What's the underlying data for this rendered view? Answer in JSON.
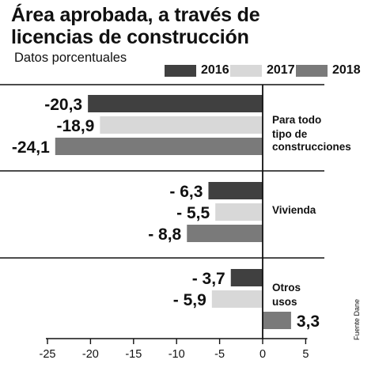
{
  "title_line1": "Área aprobada, a través de",
  "title_line2": "licencias de construcción",
  "subtitle": "Datos porcentuales",
  "source": "Fuente Dane",
  "colors": {
    "2016": "#404040",
    "2017": "#d8d8d8",
    "2018": "#7a7a7a"
  },
  "chart_data": {
    "type": "bar",
    "orientation": "horizontal",
    "categories": [
      "Para todo tipo de construcciones",
      "Vivienda",
      "Otros usos"
    ],
    "category_label_lines": [
      [
        "Para todo",
        "tipo de",
        "construcciones"
      ],
      [
        "Vivienda"
      ],
      [
        "Otros",
        "usos"
      ]
    ],
    "series": [
      {
        "name": "2016",
        "values": [
          -20.3,
          -6.3,
          -3.7
        ],
        "labels": [
          "-20,3",
          "- 6,3",
          "- 3,7"
        ]
      },
      {
        "name": "2017",
        "values": [
          -18.9,
          -5.5,
          -5.9
        ],
        "labels": [
          "-18,9",
          "- 5,5",
          "- 5,9"
        ]
      },
      {
        "name": "2018",
        "values": [
          -24.1,
          -8.8,
          3.3
        ],
        "labels": [
          "-24,1",
          "- 8,8",
          "3,3"
        ]
      }
    ],
    "x_ticks": [
      -25,
      -20,
      -15,
      -10,
      -5,
      0,
      5
    ],
    "xlim": [
      -25,
      5
    ],
    "grid": false,
    "legend_position": "top-right"
  }
}
